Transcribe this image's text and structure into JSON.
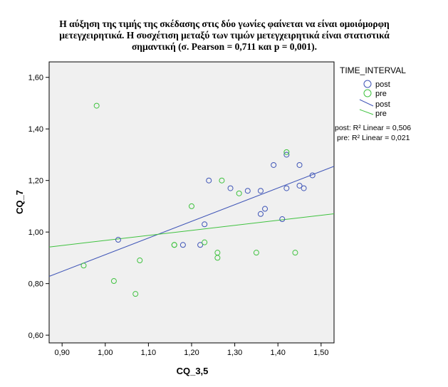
{
  "title_lines": [
    "Η αύξηση της τιμής της σκέδασης στις δύο γωνίες φαίνεται να είναι ομοιόμορφη",
    "μετεγχειρητικά. Η συσχέτιση μεταξύ των τιμών μετεγχειρητικά είναι στατιστικά",
    "σημαντική (σ. Pearson = 0,711 και p = 0,001)."
  ],
  "chart_data": {
    "type": "scatter",
    "xlabel": "CQ_3,5",
    "ylabel": "CQ_7",
    "xlim": [
      0.87,
      1.53
    ],
    "ylim": [
      0.57,
      1.66
    ],
    "x_ticks": [
      "0,90",
      "1,00",
      "1,10",
      "1,20",
      "1,30",
      "1,40",
      "1,50"
    ],
    "x_tick_values": [
      0.9,
      1.0,
      1.1,
      1.2,
      1.3,
      1.4,
      1.5
    ],
    "y_ticks": [
      "0,60",
      "0,80",
      "1,00",
      "1,20",
      "1,40",
      "1,60"
    ],
    "y_tick_values": [
      0.6,
      0.8,
      1.0,
      1.2,
      1.4,
      1.6
    ],
    "grid": false,
    "legend_title": "TIME_INTERVAL",
    "legend_position": "right",
    "series": [
      {
        "name": "post",
        "color": "#3f55b7",
        "points": [
          [
            1.03,
            0.97
          ],
          [
            1.18,
            0.95
          ],
          [
            1.22,
            0.95
          ],
          [
            1.23,
            1.03
          ],
          [
            1.24,
            1.2
          ],
          [
            1.29,
            1.17
          ],
          [
            1.33,
            1.16
          ],
          [
            1.36,
            1.16
          ],
          [
            1.36,
            1.07
          ],
          [
            1.37,
            1.09
          ],
          [
            1.39,
            1.26
          ],
          [
            1.41,
            1.05
          ],
          [
            1.42,
            1.3
          ],
          [
            1.42,
            1.17
          ],
          [
            1.45,
            1.26
          ],
          [
            1.45,
            1.18
          ],
          [
            1.46,
            1.17
          ],
          [
            1.48,
            1.22
          ]
        ],
        "fit": {
          "label": "post",
          "x": [
            0.87,
            1.53
          ],
          "y": [
            0.828,
            1.255
          ]
        },
        "r2_label": "post: R² Linear = 0,506"
      },
      {
        "name": "pre",
        "color": "#3fc23f",
        "points": [
          [
            0.95,
            0.87
          ],
          [
            0.98,
            1.49
          ],
          [
            1.02,
            0.81
          ],
          [
            1.07,
            0.76
          ],
          [
            1.08,
            0.89
          ],
          [
            1.16,
            0.95
          ],
          [
            1.16,
            0.95
          ],
          [
            1.2,
            1.1
          ],
          [
            1.23,
            0.96
          ],
          [
            1.26,
            0.92
          ],
          [
            1.26,
            0.9
          ],
          [
            1.27,
            1.2
          ],
          [
            1.31,
            1.15
          ],
          [
            1.35,
            0.92
          ],
          [
            1.42,
            1.31
          ],
          [
            1.44,
            0.92
          ]
        ],
        "fit": {
          "label": "pre",
          "x": [
            0.87,
            1.53
          ],
          "y": [
            0.942,
            1.071
          ]
        },
        "r2_label": "pre: R² Linear = 0,021"
      }
    ]
  }
}
